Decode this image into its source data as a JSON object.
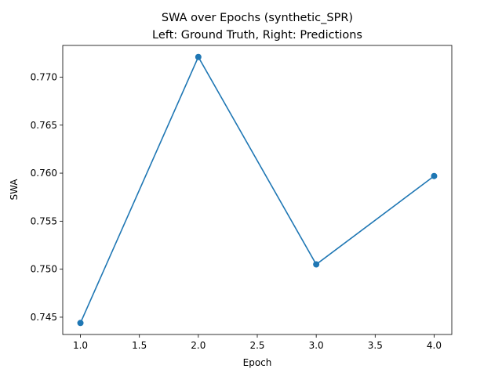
{
  "chart_data": {
    "type": "line",
    "title": "SWA over Epochs (synthetic_SPR)",
    "subtitle": "Left: Ground Truth, Right: Predictions",
    "xlabel": "Epoch",
    "ylabel": "SWA",
    "xlim": [
      0.85,
      4.15
    ],
    "ylim": [
      0.7432,
      0.7733
    ],
    "x_ticks": [
      "1.0",
      "1.5",
      "2.0",
      "2.5",
      "3.0",
      "3.5",
      "4.0"
    ],
    "y_ticks": [
      "0.745",
      "0.750",
      "0.755",
      "0.760",
      "0.765",
      "0.770"
    ],
    "x": [
      1,
      2,
      3,
      4
    ],
    "series": [
      {
        "values": [
          0.7444,
          0.7721,
          0.7505,
          0.7597
        ],
        "color": "#1f77b4",
        "marker": "circle"
      }
    ],
    "grid": false,
    "legend": "none"
  }
}
